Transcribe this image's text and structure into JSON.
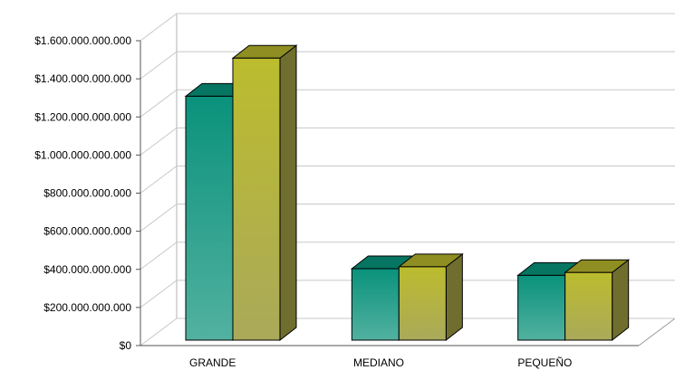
{
  "chart_data": {
    "type": "bar",
    "title": "",
    "xlabel": "",
    "ylabel": "",
    "categories": [
      "GRANDE",
      "MEDIANO",
      "PEQUEÑO"
    ],
    "series": [
      {
        "values": [
          1280000000000,
          375000000000,
          340000000000
        ],
        "color": "#0e8f7c"
      },
      {
        "values": [
          1480000000000,
          385000000000,
          355000000000
        ],
        "color": "#b6b832"
      }
    ],
    "ylim": [
      0,
      1600000000000
    ],
    "ytick_labels": [
      "$0",
      "$200.000.000.000",
      "$400.000.000.000",
      "$600.000.000.000",
      "$800.000.000.000",
      "$1.000.000.000.000",
      "$1.200.000.000.000",
      "$1.400.000.000.000",
      "$1.600.000.000.000"
    ],
    "grid": true,
    "legend": "none",
    "style": "3d-column"
  }
}
